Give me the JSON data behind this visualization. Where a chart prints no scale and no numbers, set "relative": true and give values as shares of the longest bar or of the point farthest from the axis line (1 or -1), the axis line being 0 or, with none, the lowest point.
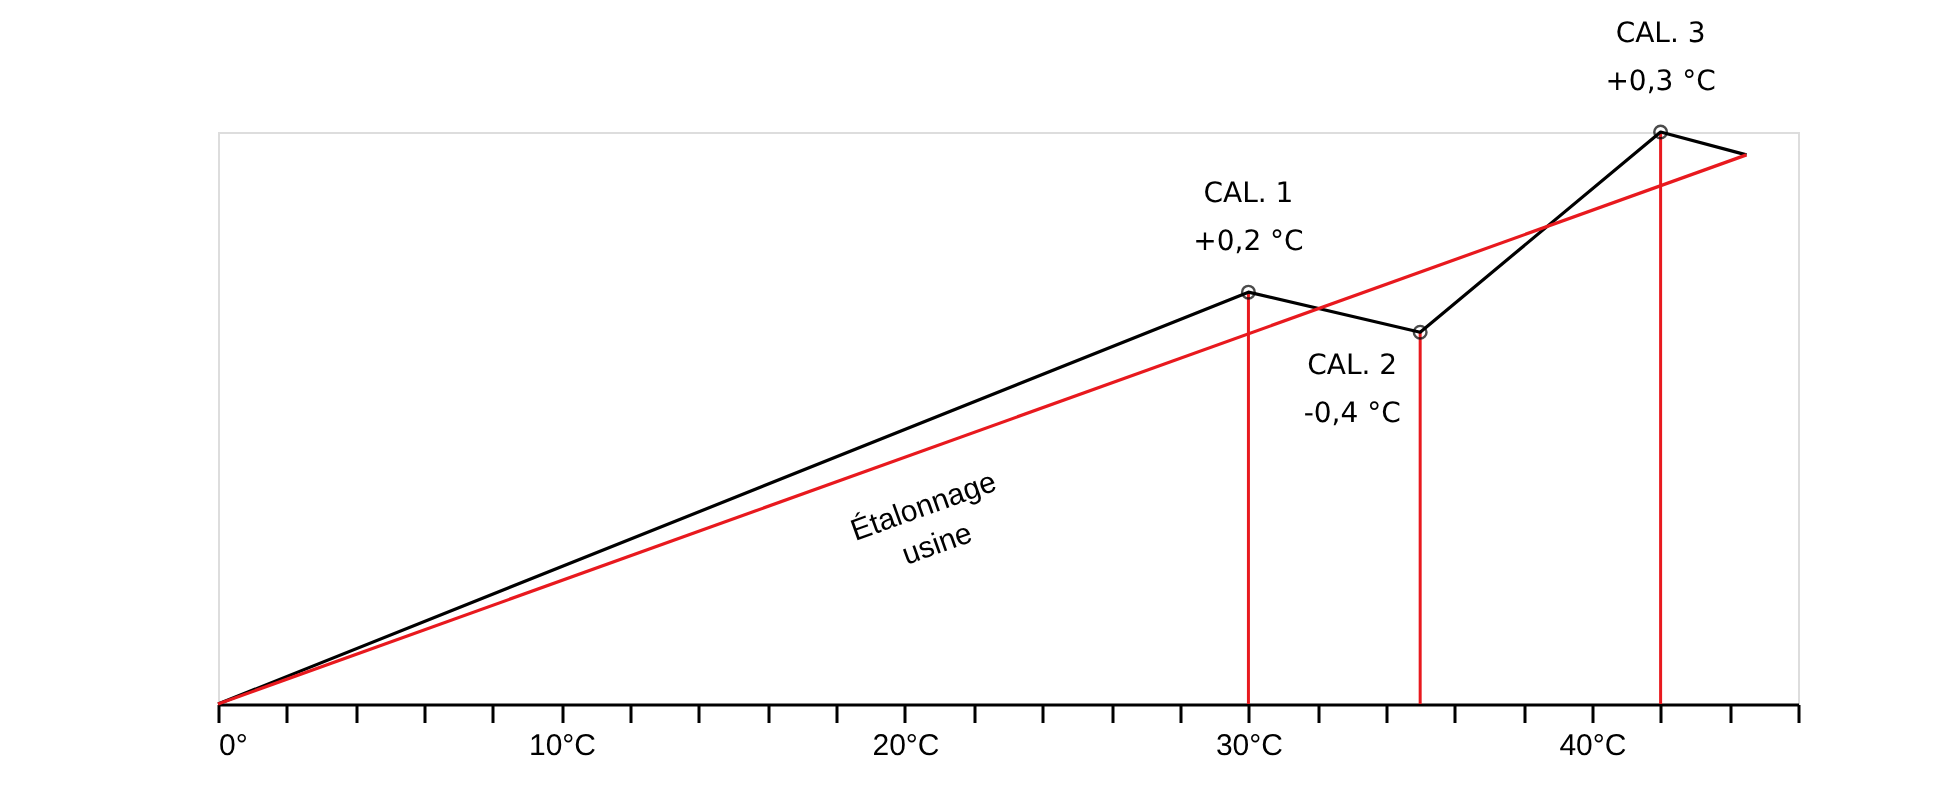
{
  "chart_data": {
    "type": "line",
    "relative": true,
    "xlim": [
      0,
      46
    ],
    "xticks": [
      {
        "value": 0,
        "label": "0°"
      },
      {
        "value": 2,
        "label": null
      },
      {
        "value": 4,
        "label": null
      },
      {
        "value": 6,
        "label": null
      },
      {
        "value": 8,
        "label": null
      },
      {
        "value": 10,
        "label": "10°C"
      },
      {
        "value": 12,
        "label": null
      },
      {
        "value": 14,
        "label": null
      },
      {
        "value": 16,
        "label": null
      },
      {
        "value": 18,
        "label": null
      },
      {
        "value": 20,
        "label": "20°C"
      },
      {
        "value": 22,
        "label": null
      },
      {
        "value": 24,
        "label": null
      },
      {
        "value": 26,
        "label": null
      },
      {
        "value": 28,
        "label": null
      },
      {
        "value": 30,
        "label": "30°C"
      },
      {
        "value": 32,
        "label": null
      },
      {
        "value": 34,
        "label": null
      },
      {
        "value": 36,
        "label": null
      },
      {
        "value": 38,
        "label": null
      },
      {
        "value": 40,
        "label": "40°C"
      },
      {
        "value": 42,
        "label": null
      },
      {
        "value": 44,
        "label": null
      },
      {
        "value": 46,
        "label": null
      }
    ],
    "tick_labels": "x",
    "grid": false,
    "line_style": "solid",
    "series": [
      {
        "color": "#000000",
        "x": [
          0,
          30,
          35,
          42,
          44.5
        ],
        "values": [
          0,
          0.72,
          0.65,
          1.0,
          0.96
        ]
      },
      {
        "name": "Étalonnage\nusine",
        "color": "#e8191e",
        "x": [
          0,
          44.5
        ],
        "values": [
          0,
          0.96
        ]
      },
      {
        "type": "scatter",
        "marker": "circle",
        "color": "#000000",
        "x": [
          30,
          35,
          42
        ],
        "values": [
          0.72,
          0.65,
          1.0
        ]
      }
    ],
    "ref_lines": [
      {
        "axis": "x",
        "value": 30,
        "color": "#e8191e"
      },
      {
        "axis": "x",
        "value": 35,
        "color": "#e8191e"
      },
      {
        "axis": "x",
        "value": 42,
        "color": "#e8191e"
      }
    ],
    "annotations": [
      {
        "text": "CAL. 1\n+0,2 °C",
        "x": 30,
        "y": 0.72
      },
      {
        "text": "CAL. 2\n-0,4 °C",
        "x": 35,
        "y": 0.65
      },
      {
        "text": "CAL. 3\n+0,3 °C",
        "x": 42,
        "y": 1.0
      }
    ]
  }
}
